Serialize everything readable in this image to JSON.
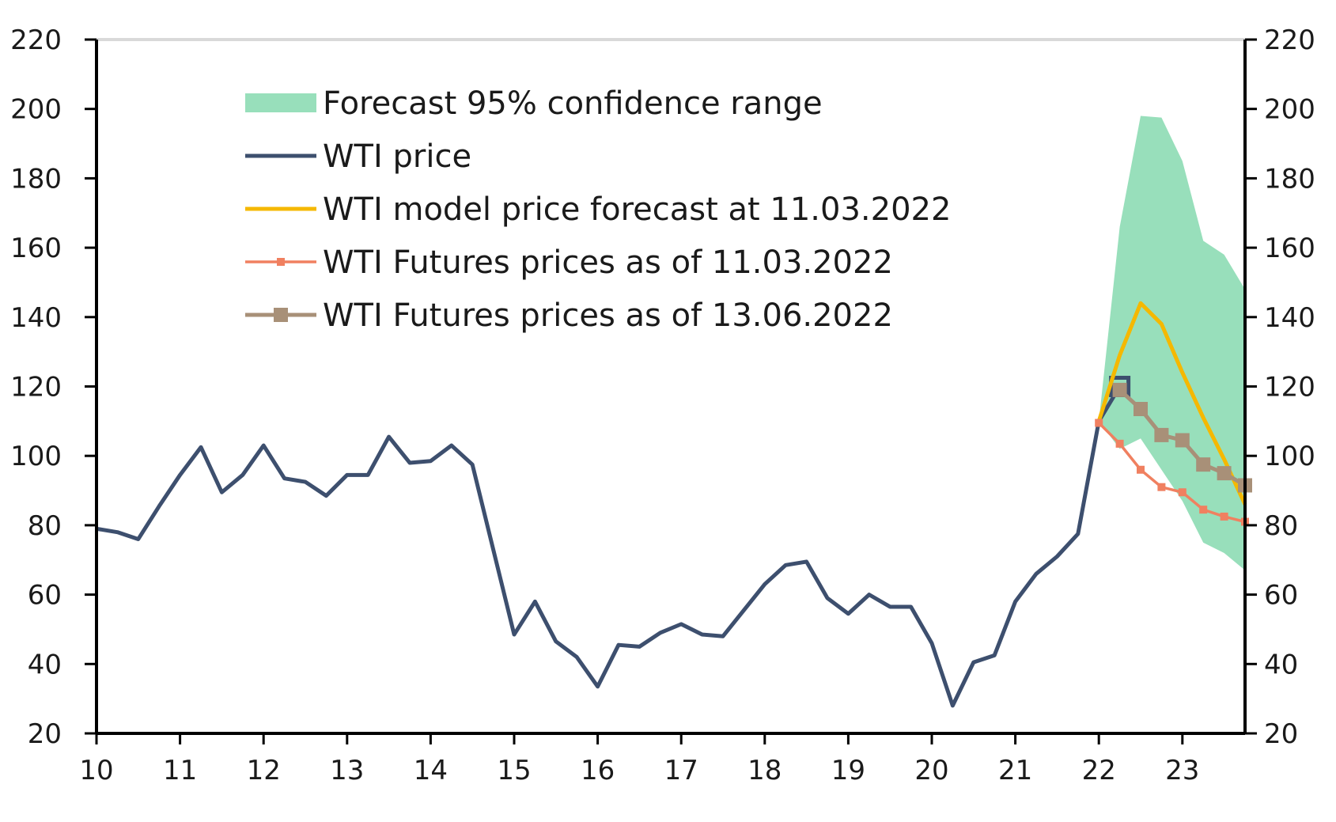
{
  "chart_data": {
    "type": "line",
    "title": "",
    "xlabel": "",
    "ylabel": "",
    "x_tick_labels": [
      "10",
      "11",
      "12",
      "13",
      "14",
      "15",
      "16",
      "17",
      "18",
      "19",
      "20",
      "21",
      "22",
      "23"
    ],
    "x_tick_values": [
      10,
      11,
      12,
      13,
      14,
      15,
      16,
      17,
      18,
      19,
      20,
      21,
      22,
      23
    ],
    "xlim": [
      10,
      23.75
    ],
    "ylim": [
      20,
      220
    ],
    "y_ticks": [
      20,
      40,
      60,
      80,
      100,
      120,
      140,
      160,
      180,
      200,
      220
    ],
    "left_axis_labels": [
      "20",
      "40",
      "60",
      "80",
      "100",
      "120",
      "140",
      "160",
      "180",
      "200",
      "220"
    ],
    "right_axis_labels": [
      "20",
      "40",
      "60",
      "80",
      "100",
      "120",
      "140",
      "160",
      "180",
      "200",
      "220"
    ],
    "legend_position": "top-left",
    "legend": [
      {
        "key": "band",
        "label": "Forecast 95% confidence range",
        "color": "#98dfbb",
        "marker": "area"
      },
      {
        "key": "wti",
        "label": "WTI price",
        "color": "#3d4f6e",
        "marker": "line"
      },
      {
        "key": "model",
        "label": "WTI model price forecast at 11.03.2022",
        "color": "#f5b800",
        "marker": "line"
      },
      {
        "key": "fut1",
        "label": "WTI Futures prices as of 11.03.2022",
        "color": "#f08060",
        "marker": "small-square"
      },
      {
        "key": "fut2",
        "label": "WTI Futures prices as of 13.06.2022",
        "color": "#a89078",
        "marker": "large-square"
      }
    ],
    "confidence_band": {
      "name": "Forecast 95% confidence range",
      "color": "#98dfbb",
      "x": [
        22.0,
        22.25,
        22.5,
        22.75,
        23.0,
        23.25,
        23.5,
        23.75
      ],
      "upper": [
        110,
        166,
        198,
        197.5,
        185,
        162,
        158,
        148
      ],
      "lower": [
        110,
        102,
        105,
        96,
        87,
        75,
        72,
        67
      ]
    },
    "series": [
      {
        "key": "wti",
        "name": "WTI price",
        "color": "#3d4f6e",
        "x": [
          10.0,
          10.25,
          10.5,
          10.75,
          11.0,
          11.25,
          11.5,
          11.75,
          12.0,
          12.25,
          12.5,
          12.75,
          13.0,
          13.25,
          13.5,
          13.75,
          14.0,
          14.25,
          14.5,
          14.75,
          15.0,
          15.25,
          15.5,
          15.75,
          16.0,
          16.25,
          16.5,
          16.75,
          17.0,
          17.25,
          17.5,
          17.75,
          18.0,
          18.25,
          18.5,
          18.75,
          19.0,
          19.25,
          19.5,
          19.75,
          20.0,
          20.25,
          20.5,
          20.75,
          21.0,
          21.25,
          21.5,
          21.75,
          22.0,
          22.25
        ],
        "values": [
          79,
          78,
          76,
          85.5,
          94.5,
          102.5,
          89.5,
          94.5,
          103,
          93.5,
          92.5,
          88.5,
          94.5,
          94.5,
          105.5,
          98,
          98.5,
          103,
          97.5,
          73,
          48.5,
          58,
          46.5,
          42,
          33.5,
          45.5,
          45,
          49,
          51.5,
          48.5,
          48,
          55.5,
          63,
          68.5,
          69.5,
          59,
          54.5,
          60,
          56.5,
          56.5,
          46,
          28,
          40.5,
          42.5,
          58,
          66,
          71,
          77.5,
          110,
          120
        ]
      },
      {
        "key": "model",
        "name": "WTI model price forecast at 11.03.2022",
        "color": "#f5b800",
        "x": [
          22.0,
          22.25,
          22.5,
          22.75,
          23.0,
          23.25,
          23.5,
          23.75
        ],
        "values": [
          110,
          129,
          144,
          138,
          124,
          111,
          99,
          86
        ]
      },
      {
        "key": "fut1",
        "name": "WTI Futures prices as of 11.03.2022",
        "color": "#f08060",
        "x": [
          22.0,
          22.25,
          22.5,
          22.75,
          23.0,
          23.25,
          23.5,
          23.75
        ],
        "values": [
          109.5,
          103.5,
          96,
          91,
          89.5,
          84.5,
          82.5,
          81
        ]
      },
      {
        "key": "fut2",
        "name": "WTI Futures prices as of 13.06.2022",
        "color": "#a89078",
        "x": [
          22.25,
          22.5,
          22.75,
          23.0,
          23.25,
          23.5,
          23.75
        ],
        "values": [
          119,
          113.5,
          106,
          104.5,
          97.5,
          95,
          91.5
        ]
      }
    ]
  }
}
